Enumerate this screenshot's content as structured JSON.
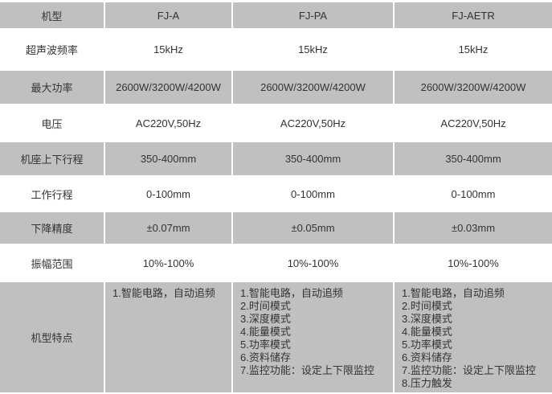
{
  "colors": {
    "row_gray": "#c0c0c0",
    "text": "#333333",
    "background": "#ffffff"
  },
  "table": {
    "header": {
      "model_label": "机型",
      "models": [
        "FJ-A",
        "FJ-PA",
        "FJ-AETR"
      ]
    },
    "rows": [
      {
        "label": "超声波频率",
        "values": [
          "15kHz",
          "15kHz",
          "15kHz"
        ]
      },
      {
        "label": "最大功率",
        "values": [
          "2600W/3200W/4200W",
          "2600W/3200W/4200W",
          "2600W/3200W/4200W"
        ]
      },
      {
        "label": "电压",
        "values": [
          "AC220V,50Hz",
          "AC220V,50Hz",
          "AC220V,50Hz"
        ]
      },
      {
        "label": "机座上下行程",
        "values": [
          "350-400mm",
          "350-400mm",
          "350-400mm"
        ]
      },
      {
        "label": "工作行程",
        "values": [
          "0-100mm",
          "0-100mm",
          "0-100mm"
        ]
      },
      {
        "label": "下降精度",
        "values": [
          "±0.07mm",
          "±0.05mm",
          "±0.03mm"
        ]
      },
      {
        "label": "振幅范围",
        "values": [
          "10%-100%",
          "10%-100%",
          "10%-100%"
        ]
      }
    ],
    "features": {
      "label": "机型特点",
      "cells": [
        "1.智能电路，自动追频",
        "1.智能电路，自动追频\n2.时间模式\n3.深度模式\n4.能量模式\n5.功率模式\n6.资料储存\n7.监控功能：设定上下限监控",
        "1.智能电路，自动追频\n2.时间模式\n3.深度模式\n4.能量模式\n5.功率模式\n6.资料储存\n7.监控功能：设定上下限监控\n8.压力触发"
      ]
    }
  }
}
